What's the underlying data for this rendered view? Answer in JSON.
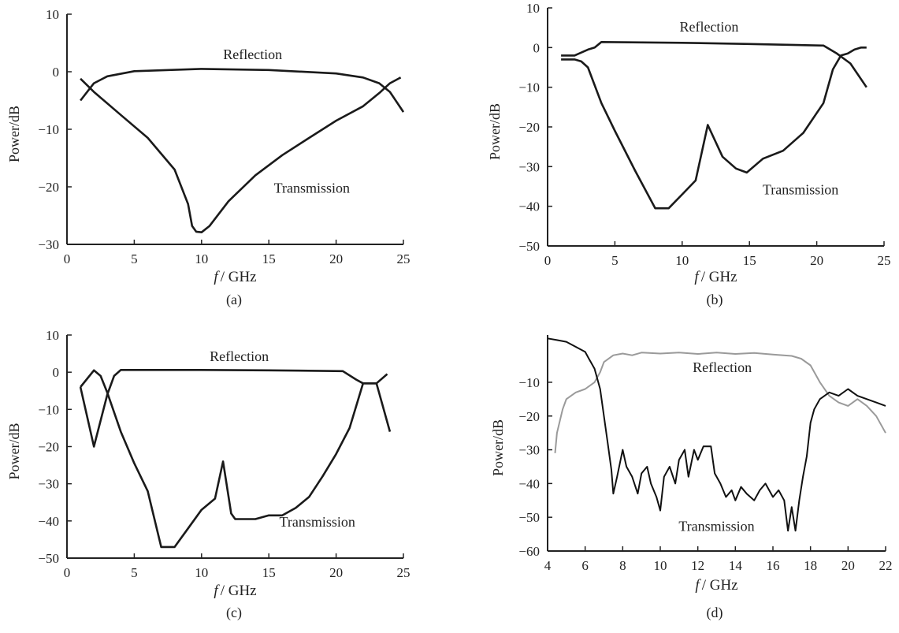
{
  "chart_data": [
    {
      "panel": "(a)",
      "type": "line",
      "xlabel_italic": "f",
      "xlabel_unit": "/ GHz",
      "ylabel": "Power/dB",
      "xlim": [
        0,
        25
      ],
      "ylim": [
        -30,
        10
      ],
      "xticks": [
        "0",
        "5",
        "10",
        "15",
        "20",
        "25"
      ],
      "yticks": [
        "10",
        "0",
        "-10",
        "-20",
        "-30"
      ],
      "annotations": [
        {
          "text": "Reflection",
          "x": 13.8,
          "y": 2.2
        },
        {
          "text": "Transmission",
          "x": 18.2,
          "y": -21
        }
      ],
      "series": [
        {
          "id": "reflection",
          "color": "#1a1a1a",
          "points": [
            [
              1,
              -5
            ],
            [
              2,
              -2
            ],
            [
              3,
              -0.8
            ],
            [
              5,
              0.1
            ],
            [
              10,
              0.5
            ],
            [
              15,
              0.3
            ],
            [
              20,
              -0.3
            ],
            [
              22,
              -1
            ],
            [
              23.2,
              -2
            ],
            [
              24,
              -3.5
            ],
            [
              25,
              -7
            ]
          ]
        },
        {
          "id": "transmission",
          "color": "#1a1a1a",
          "points": [
            [
              1,
              -1.2
            ],
            [
              2,
              -3.5
            ],
            [
              4,
              -7.5
            ],
            [
              6,
              -11.5
            ],
            [
              8,
              -17
            ],
            [
              9,
              -23
            ],
            [
              9.3,
              -26.8
            ],
            [
              9.6,
              -27.8
            ],
            [
              10,
              -27.9
            ],
            [
              10.6,
              -26.8
            ],
            [
              12,
              -22.5
            ],
            [
              14,
              -18
            ],
            [
              16,
              -14.5
            ],
            [
              18,
              -11.5
            ],
            [
              20,
              -8.5
            ],
            [
              22,
              -6
            ],
            [
              23.3,
              -3.5
            ],
            [
              24,
              -2
            ],
            [
              24.8,
              -1
            ]
          ]
        }
      ]
    },
    {
      "panel": "(b)",
      "type": "line",
      "xlabel_italic": "f",
      "xlabel_unit": "/ GHz",
      "ylabel": "Power/dB",
      "xlim": [
        0,
        25
      ],
      "ylim": [
        -50,
        10
      ],
      "xticks": [
        "0",
        "5",
        "10",
        "15",
        "20",
        "25"
      ],
      "yticks": [
        "10",
        "0",
        "-10",
        "-20",
        "-30",
        "-40",
        "-50"
      ],
      "annotations": [
        {
          "text": "Reflection",
          "x": 12,
          "y": 4
        },
        {
          "text": "Transmission",
          "x": 18.8,
          "y": -37
        }
      ],
      "series": [
        {
          "id": "reflection",
          "color": "#1a1a1a",
          "points": [
            [
              1,
              -2
            ],
            [
              2,
              -2
            ],
            [
              3,
              -0.5
            ],
            [
              3.5,
              0
            ],
            [
              4,
              1.4
            ],
            [
              10,
              1.2
            ],
            [
              15,
              0.9
            ],
            [
              20.5,
              0.5
            ],
            [
              21.5,
              -1.5
            ],
            [
              22.5,
              -4
            ],
            [
              23.7,
              -10
            ]
          ]
        },
        {
          "id": "transmission",
          "color": "#1a1a1a",
          "points": [
            [
              1,
              -3
            ],
            [
              2,
              -3
            ],
            [
              2.5,
              -3.5
            ],
            [
              3,
              -5
            ],
            [
              4,
              -14
            ],
            [
              5,
              -21
            ],
            [
              6.5,
              -31
            ],
            [
              8,
              -40.5
            ],
            [
              9,
              -40.5
            ],
            [
              10,
              -37
            ],
            [
              11,
              -33.5
            ],
            [
              11.9,
              -19.5
            ],
            [
              13,
              -27.5
            ],
            [
              14,
              -30.5
            ],
            [
              14.8,
              -31.5
            ],
            [
              16,
              -28
            ],
            [
              17.5,
              -26
            ],
            [
              19,
              -21.5
            ],
            [
              20.5,
              -14
            ],
            [
              21.2,
              -5.5
            ],
            [
              21.8,
              -2
            ],
            [
              22.3,
              -1.5
            ],
            [
              22.8,
              -0.5
            ],
            [
              23.3,
              0
            ],
            [
              23.7,
              0
            ]
          ]
        }
      ]
    },
    {
      "panel": "(c)",
      "type": "line",
      "xlabel_italic": "f",
      "xlabel_unit": "/ GHz",
      "ylabel": "Power/dB",
      "xlim": [
        0,
        25
      ],
      "ylim": [
        -50,
        10
      ],
      "xticks": [
        "0",
        "5",
        "10",
        "15",
        "20",
        "25"
      ],
      "yticks": [
        "10",
        "0",
        "-10",
        "-20",
        "-30",
        "-40",
        "-50"
      ],
      "annotations": [
        {
          "text": "Reflection",
          "x": 12.8,
          "y": 3
        },
        {
          "text": "Transmission",
          "x": 18.6,
          "y": -41.5
        }
      ],
      "series": [
        {
          "id": "reflection",
          "color": "#1a1a1a",
          "points": [
            [
              1,
              -4
            ],
            [
              2,
              -20
            ],
            [
              3,
              -6
            ],
            [
              3.5,
              -1
            ],
            [
              4,
              0.6
            ],
            [
              10,
              0.6
            ],
            [
              15,
              0.5
            ],
            [
              20.5,
              0.3
            ],
            [
              21.5,
              -2
            ],
            [
              22,
              -3
            ],
            [
              23,
              -3
            ],
            [
              24,
              -16
            ]
          ]
        },
        {
          "id": "transmission",
          "color": "#1a1a1a",
          "points": [
            [
              1,
              -4
            ],
            [
              2,
              0.5
            ],
            [
              2.5,
              -1
            ],
            [
              3,
              -5.5
            ],
            [
              4,
              -16
            ],
            [
              5,
              -24.5
            ],
            [
              6,
              -32
            ],
            [
              7,
              -47
            ],
            [
              8,
              -47
            ],
            [
              9,
              -42
            ],
            [
              10,
              -37
            ],
            [
              11,
              -34
            ],
            [
              11.6,
              -24
            ],
            [
              12.2,
              -38
            ],
            [
              12.5,
              -39.5
            ],
            [
              14,
              -39.5
            ],
            [
              15,
              -38.5
            ],
            [
              16,
              -38.5
            ],
            [
              17,
              -36.5
            ],
            [
              18,
              -33.5
            ],
            [
              19,
              -28
            ],
            [
              20,
              -22
            ],
            [
              21,
              -15
            ],
            [
              22,
              -3
            ],
            [
              23,
              -3
            ],
            [
              23.8,
              -0.5
            ]
          ]
        }
      ]
    },
    {
      "panel": "(d)",
      "type": "line",
      "xlabel_italic": "f",
      "xlabel_unit": "/ GHz",
      "ylabel": "Power/dB",
      "xlim": [
        4,
        22
      ],
      "ylim": [
        -60,
        4
      ],
      "xticks": [
        "4",
        "6",
        "8",
        "10",
        "12",
        "14",
        "16",
        "18",
        "20",
        "22"
      ],
      "yticks": [
        "-10",
        "-20",
        "-30",
        "-40",
        "-50",
        "-60"
      ],
      "annotations": [
        {
          "text": "Reflection",
          "x": 13.3,
          "y": -7
        },
        {
          "text": "Transmission",
          "x": 13,
          "y": -54
        }
      ],
      "series": [
        {
          "id": "reflection",
          "color": "#9a9a9a",
          "points": [
            [
              4.4,
              -31
            ],
            [
              4.5,
              -25
            ],
            [
              4.8,
              -18
            ],
            [
              5,
              -15
            ],
            [
              5.5,
              -13
            ],
            [
              6,
              -12
            ],
            [
              6.5,
              -10
            ],
            [
              6.8,
              -7
            ],
            [
              7,
              -4
            ],
            [
              7.5,
              -2
            ],
            [
              8,
              -1.5
            ],
            [
              8.5,
              -2
            ],
            [
              9,
              -1.2
            ],
            [
              10,
              -1.5
            ],
            [
              11,
              -1.2
            ],
            [
              12,
              -1.6
            ],
            [
              13,
              -1.2
            ],
            [
              14,
              -1.6
            ],
            [
              15,
              -1.3
            ],
            [
              16,
              -1.8
            ],
            [
              17,
              -2.2
            ],
            [
              17.5,
              -3
            ],
            [
              18,
              -5
            ],
            [
              18.5,
              -10
            ],
            [
              19,
              -14
            ],
            [
              19.5,
              -16
            ],
            [
              20,
              -17
            ],
            [
              20.5,
              -15
            ],
            [
              21,
              -17
            ],
            [
              21.5,
              -20
            ],
            [
              22,
              -25
            ]
          ]
        },
        {
          "id": "transmission",
          "color": "#111111",
          "points": [
            [
              4,
              3
            ],
            [
              4.5,
              2.5
            ],
            [
              5,
              2
            ],
            [
              5.5,
              0.5
            ],
            [
              6,
              -1
            ],
            [
              6.2,
              -3
            ],
            [
              6.5,
              -6
            ],
            [
              6.8,
              -12
            ],
            [
              7,
              -20
            ],
            [
              7.2,
              -28
            ],
            [
              7.4,
              -36
            ],
            [
              7.5,
              -43
            ],
            [
              7.7,
              -38
            ],
            [
              8,
              -30
            ],
            [
              8.2,
              -35
            ],
            [
              8.5,
              -38
            ],
            [
              8.8,
              -43
            ],
            [
              9,
              -37
            ],
            [
              9.3,
              -35
            ],
            [
              9.5,
              -40
            ],
            [
              9.8,
              -44
            ],
            [
              10,
              -48
            ],
            [
              10.2,
              -38
            ],
            [
              10.5,
              -35
            ],
            [
              10.8,
              -40
            ],
            [
              11,
              -33
            ],
            [
              11.3,
              -30
            ],
            [
              11.5,
              -38
            ],
            [
              11.8,
              -30
            ],
            [
              12,
              -33
            ],
            [
              12.3,
              -29
            ],
            [
              12.7,
              -29
            ],
            [
              12.9,
              -37
            ],
            [
              13.2,
              -40
            ],
            [
              13.5,
              -44
            ],
            [
              13.8,
              -42
            ],
            [
              14,
              -45
            ],
            [
              14.3,
              -41
            ],
            [
              14.6,
              -43
            ],
            [
              15,
              -45
            ],
            [
              15.3,
              -42
            ],
            [
              15.6,
              -40
            ],
            [
              16,
              -44
            ],
            [
              16.3,
              -42
            ],
            [
              16.6,
              -45
            ],
            [
              16.8,
              -54
            ],
            [
              17,
              -47
            ],
            [
              17.2,
              -54
            ],
            [
              17.4,
              -45
            ],
            [
              17.6,
              -38
            ],
            [
              17.8,
              -32
            ],
            [
              18,
              -22
            ],
            [
              18.2,
              -18
            ],
            [
              18.5,
              -15
            ],
            [
              19,
              -13
            ],
            [
              19.5,
              -14
            ],
            [
              20,
              -12
            ],
            [
              20.5,
              -14
            ],
            [
              21,
              -15
            ],
            [
              21.5,
              -16
            ],
            [
              22,
              -17
            ]
          ]
        }
      ]
    }
  ]
}
